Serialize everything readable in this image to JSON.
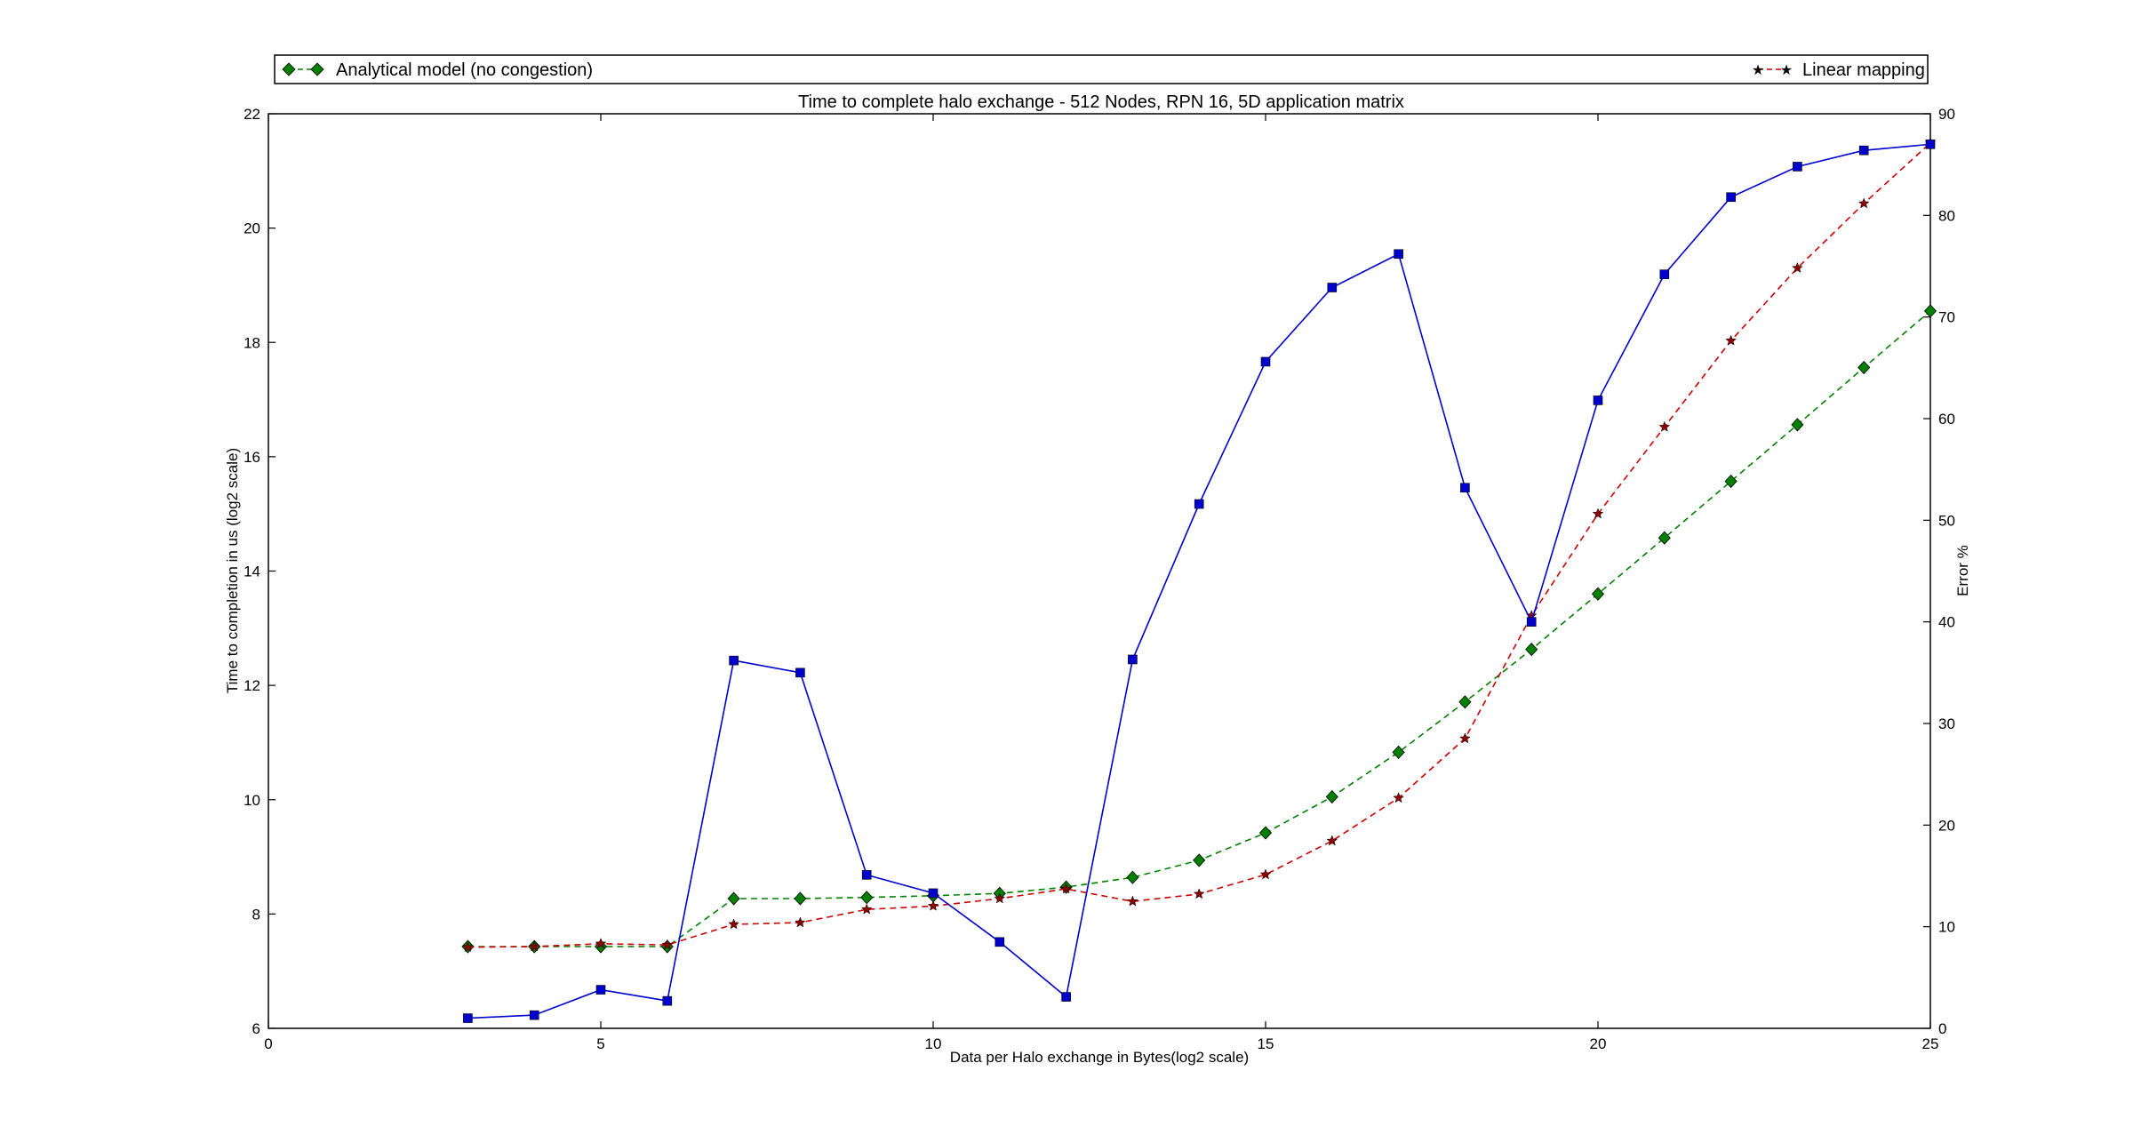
{
  "chart_data": {
    "type": "line",
    "title": "Time to complete halo exchange - 512 Nodes, RPN 16, 5D application matrix",
    "xlabel": "Data per Halo exchange in Bytes(log2 scale)",
    "ylabel": "Time to completion in us (log2 scale)",
    "y2label": "Error %",
    "xlim": [
      0,
      25
    ],
    "ylim": [
      6,
      22
    ],
    "y2lim": [
      0,
      90
    ],
    "xticks": [
      0,
      5,
      10,
      15,
      20,
      25
    ],
    "yticks": [
      6,
      8,
      10,
      12,
      14,
      16,
      18,
      20,
      22
    ],
    "y2ticks": [
      0,
      10,
      20,
      30,
      40,
      50,
      60,
      70,
      80,
      90
    ],
    "grid": false,
    "legend_placement": "above plot, full width",
    "series": [
      {
        "name": "Analytical model (no congestion)",
        "axis": "left",
        "color": "#008000",
        "marker": "diamond",
        "linestyle": "dashed",
        "x": [
          3,
          4,
          5,
          6,
          7,
          8,
          9,
          10,
          11,
          12,
          13,
          14,
          15,
          16,
          17,
          18,
          19,
          20,
          21,
          22,
          23,
          24,
          25
        ],
        "y": [
          7.43,
          7.43,
          7.43,
          7.43,
          8.27,
          8.27,
          8.29,
          8.32,
          8.36,
          8.47,
          8.64,
          8.94,
          9.42,
          10.05,
          10.83,
          11.71,
          12.63,
          13.6,
          14.58,
          15.57,
          16.56,
          17.56,
          18.55
        ]
      },
      {
        "name": "Linear mapping",
        "axis": "left",
        "color": "#cc0000",
        "marker": "star",
        "linestyle": "dashed",
        "x": [
          3,
          4,
          5,
          6,
          7,
          8,
          9,
          10,
          11,
          12,
          13,
          14,
          15,
          16,
          17,
          18,
          19,
          20,
          21,
          22,
          23,
          24,
          25
        ],
        "y": [
          7.42,
          7.43,
          7.48,
          7.46,
          7.82,
          7.85,
          8.08,
          8.14,
          8.27,
          8.44,
          8.22,
          8.35,
          8.69,
          9.28,
          10.03,
          11.07,
          13.22,
          15.0,
          16.52,
          18.03,
          19.3,
          20.43,
          21.49
        ]
      },
      {
        "axis": "right",
        "color": "#0000cc",
        "marker": "square",
        "linestyle": "solid",
        "x": [
          3,
          4,
          5,
          6,
          7,
          8,
          9,
          10,
          11,
          12,
          13,
          14,
          15,
          16,
          17,
          18,
          19,
          20,
          21,
          22,
          23,
          24,
          25
        ],
        "y": [
          1.0,
          1.3,
          3.8,
          2.7,
          36.2,
          35.0,
          15.1,
          13.3,
          8.5,
          3.1,
          36.3,
          51.6,
          65.6,
          72.9,
          76.2,
          53.2,
          40.0,
          61.8,
          74.2,
          81.8,
          84.8,
          86.4,
          87.0
        ]
      }
    ]
  }
}
